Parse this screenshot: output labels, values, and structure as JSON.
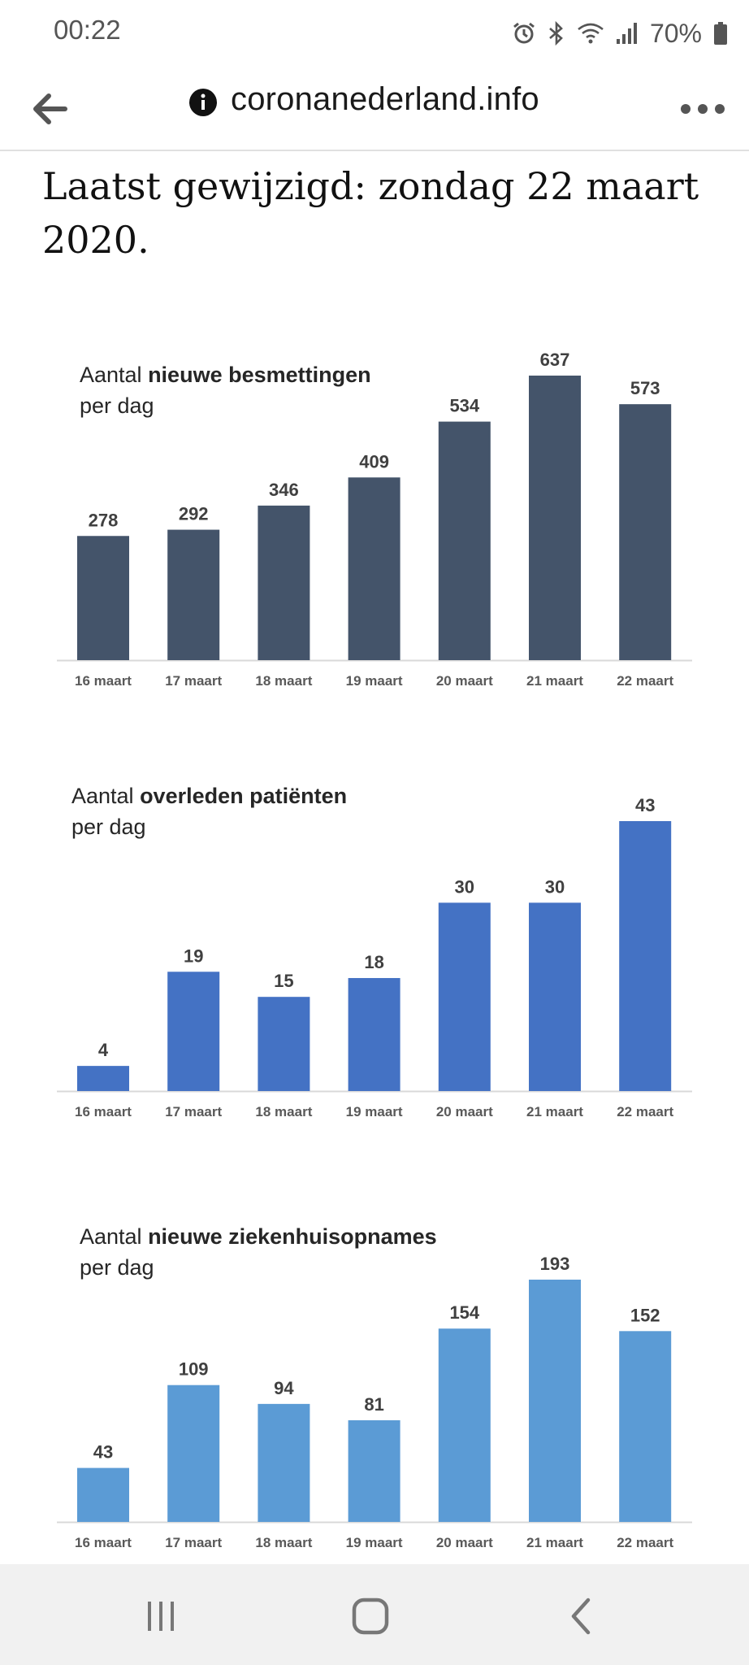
{
  "status_bar": {
    "time": "00:22",
    "battery": "70%",
    "icons": [
      "alarm-icon",
      "bluetooth-icon",
      "wifi-icon",
      "signal-icon",
      "battery-icon"
    ]
  },
  "browser": {
    "url": "coronanederland.info",
    "icons": {
      "back": "back-arrow-icon",
      "info": "info-icon",
      "menu": "more-menu-icon"
    }
  },
  "page": {
    "updated": "Laatst gewijzigd: zondag 22 maart 2020."
  },
  "colors": {
    "chart1": "#44546a",
    "chart2": "#4472c4",
    "chart3": "#5b9bd5",
    "axis": "#d9d9d9",
    "label": "#404040"
  },
  "chart_data": [
    {
      "type": "bar",
      "title_prefix": "Aantal ",
      "title_bold": "nieuwe besmettingen",
      "title_line2": "per dag",
      "categories": [
        "16 maart",
        "17 maart",
        "18 maart",
        "19 maart",
        "20 maart",
        "21 maart",
        "22 maart"
      ],
      "values": [
        278,
        292,
        346,
        409,
        534,
        637,
        573
      ],
      "ylim": [
        0,
        637
      ]
    },
    {
      "type": "bar",
      "title_prefix": "Aantal ",
      "title_bold": "overleden patiënten",
      "title_line2": "per dag",
      "categories": [
        "16 maart",
        "17 maart",
        "18 maart",
        "19 maart",
        "20 maart",
        "21 maart",
        "22 maart"
      ],
      "values": [
        4,
        19,
        15,
        18,
        30,
        30,
        43
      ],
      "ylim": [
        0,
        43
      ]
    },
    {
      "type": "bar",
      "title_prefix": "Aantal ",
      "title_bold": "nieuwe ziekenhuisopnames",
      "title_line2": "per dag",
      "categories": [
        "16 maart",
        "17 maart",
        "18 maart",
        "19 maart",
        "20 maart",
        "21 maart",
        "22 maart"
      ],
      "values": [
        43,
        109,
        94,
        81,
        154,
        193,
        152
      ],
      "ylim": [
        0,
        193
      ]
    }
  ]
}
